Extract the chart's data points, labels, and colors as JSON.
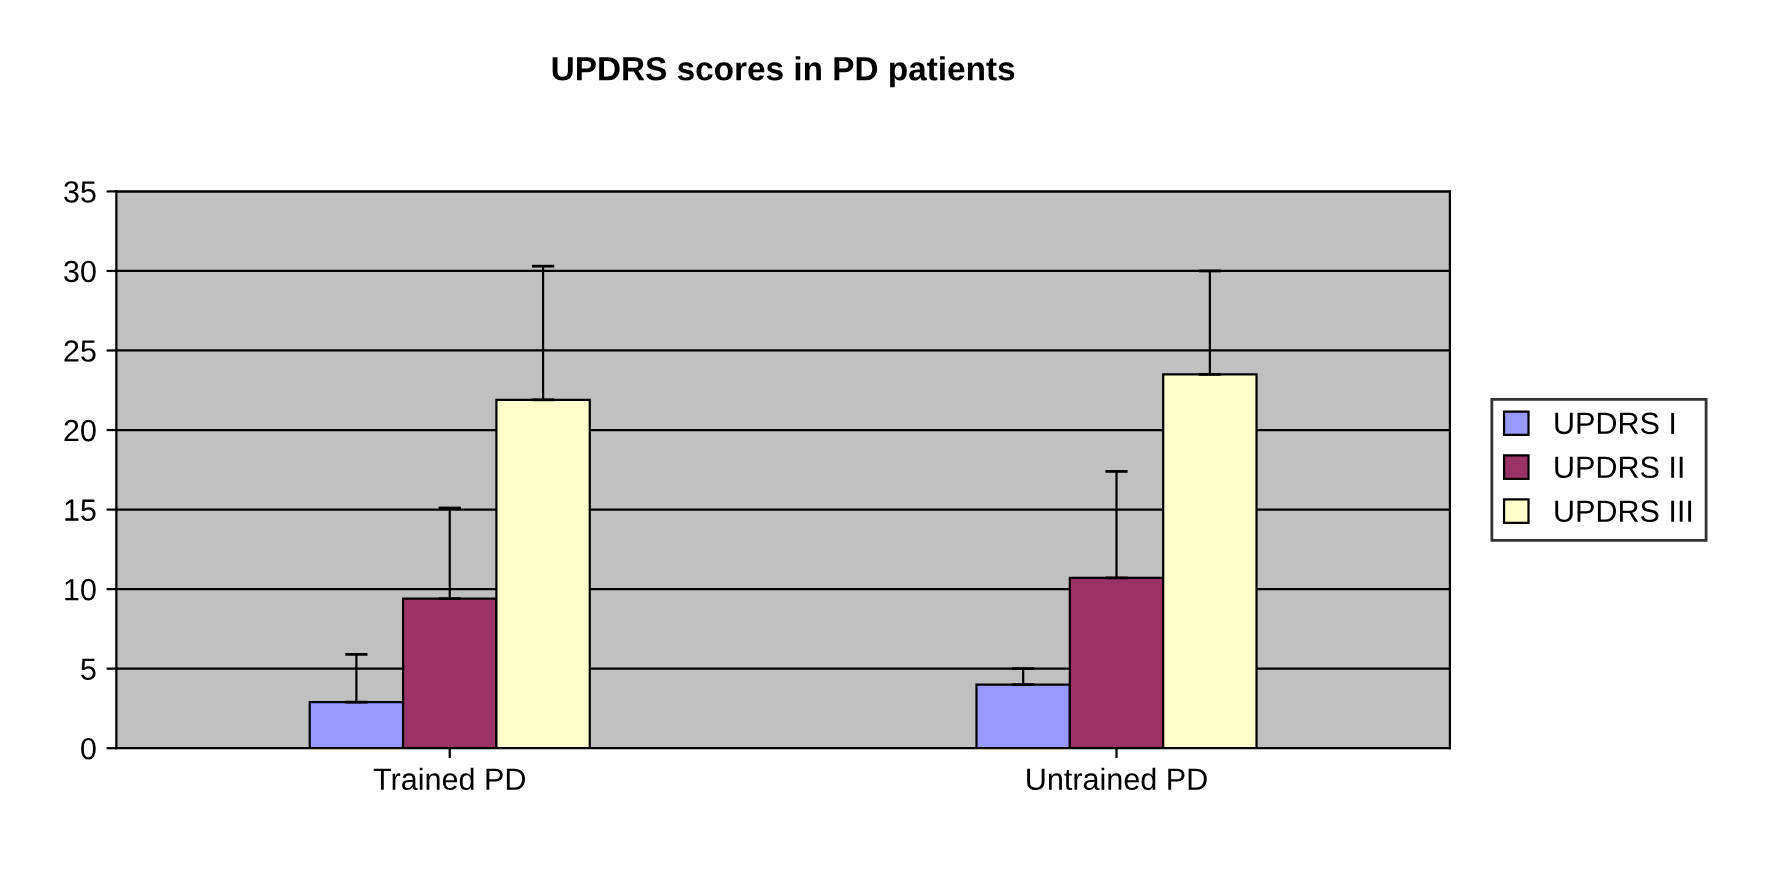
{
  "chart_data": {
    "type": "bar",
    "title": "UPDRS scores in PD patients",
    "categories": [
      "Trained PD",
      "Untrained PD"
    ],
    "series": [
      {
        "name": "UPDRS I",
        "color": "#9999ff",
        "values": [
          2.9,
          4.0
        ],
        "errors": [
          [
            2.9,
            5.9
          ],
          [
            4.0,
            5.0
          ]
        ]
      },
      {
        "name": "UPDRS II",
        "color": "#993366",
        "values": [
          9.4,
          10.7
        ],
        "errors": [
          [
            9.4,
            15.1
          ],
          [
            10.7,
            17.4
          ]
        ]
      },
      {
        "name": "UPDRS III",
        "color": "#ffffcc",
        "values": [
          21.9,
          23.5
        ],
        "errors": [
          [
            21.9,
            30.3
          ],
          [
            23.5,
            30.0
          ]
        ]
      }
    ],
    "ylim": [
      0,
      35
    ],
    "yticks": [
      0,
      5,
      10,
      15,
      20,
      25,
      30,
      35
    ],
    "grid": "y",
    "legend": "right"
  }
}
